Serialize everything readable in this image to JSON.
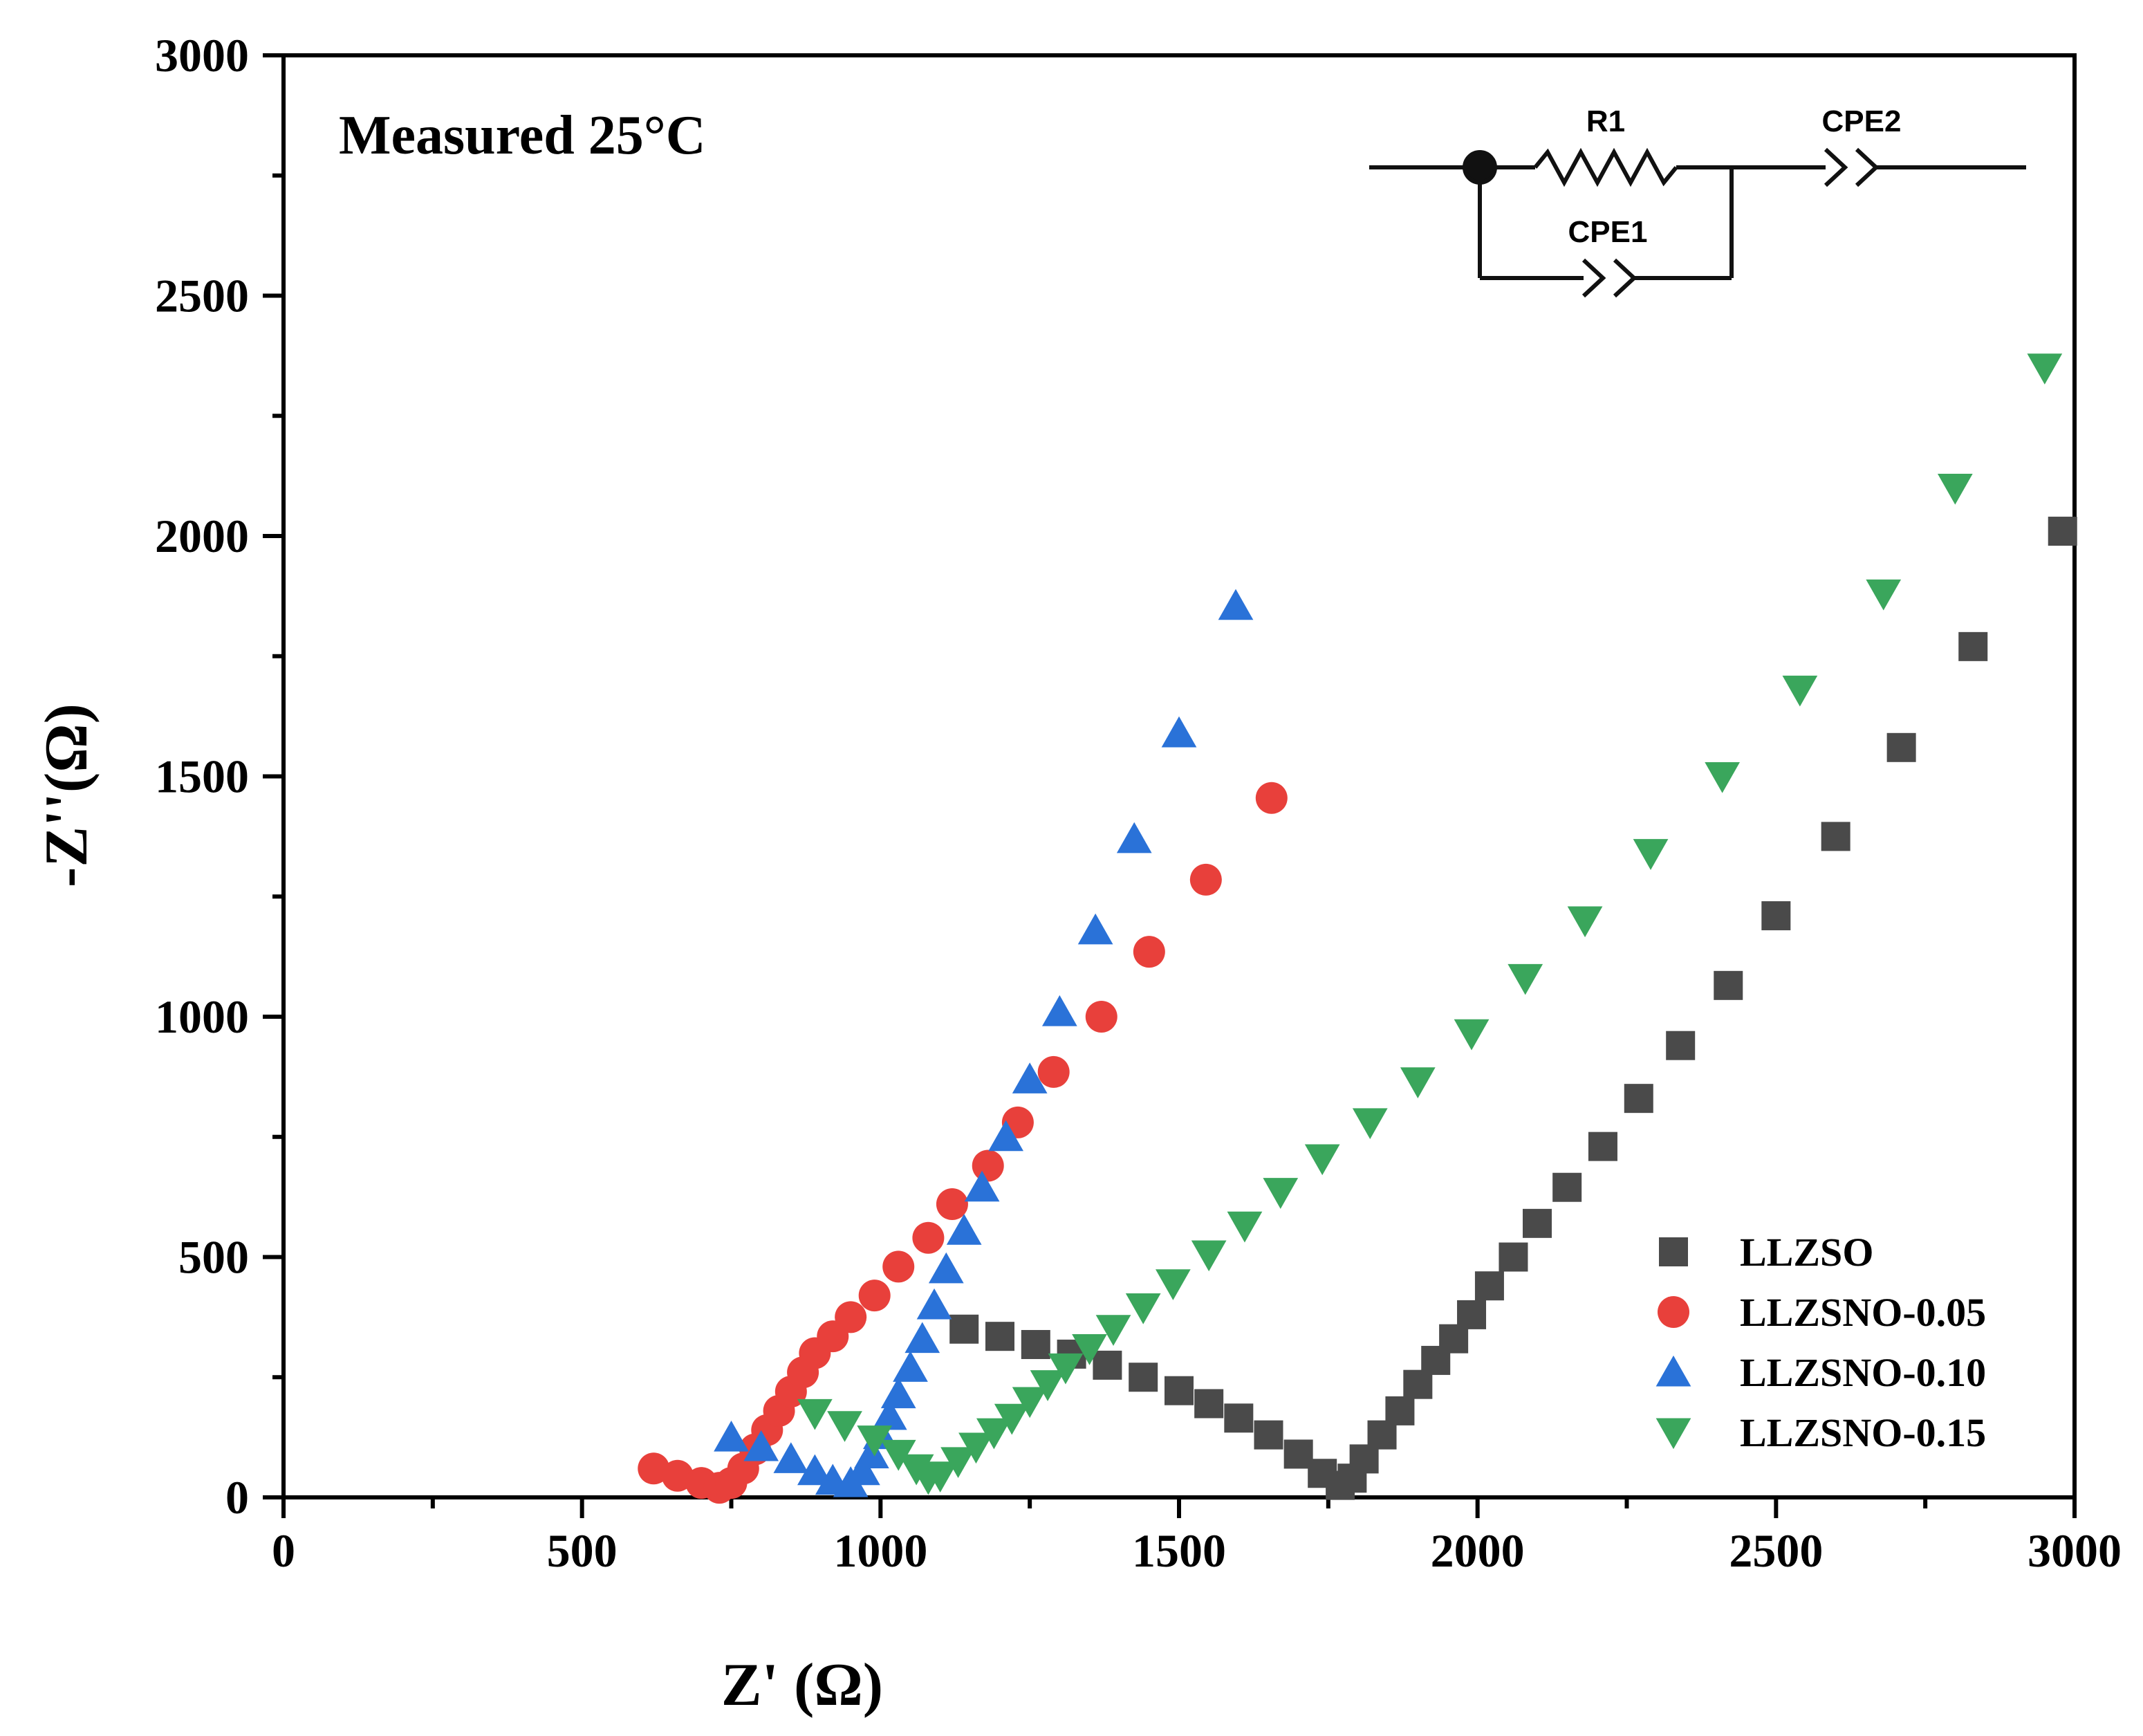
{
  "chart_data": {
    "type": "scatter",
    "xlabel": "Z' (Ω)",
    "ylabel": "-Z''(Ω)",
    "xlim": [
      0,
      3000
    ],
    "ylim": [
      0,
      3000
    ],
    "xticks": [
      "0",
      "500",
      "1000",
      "1500",
      "2000",
      "2500",
      "3000"
    ],
    "yticks": [
      "0",
      "500",
      "1000",
      "1500",
      "2000",
      "2500",
      "3000"
    ],
    "annotation": "Measured 25°C",
    "legend_position": "bottom-right",
    "series": [
      {
        "name": "LLZSO",
        "color": "#4a4a4a",
        "marker": "square",
        "points": [
          [
            1140,
            350
          ],
          [
            1200,
            335
          ],
          [
            1260,
            318
          ],
          [
            1320,
            298
          ],
          [
            1380,
            275
          ],
          [
            1440,
            250
          ],
          [
            1500,
            222
          ],
          [
            1550,
            195
          ],
          [
            1600,
            165
          ],
          [
            1650,
            130
          ],
          [
            1700,
            90
          ],
          [
            1740,
            50
          ],
          [
            1770,
            25
          ],
          [
            1790,
            40
          ],
          [
            1810,
            80
          ],
          [
            1840,
            130
          ],
          [
            1870,
            180
          ],
          [
            1900,
            235
          ],
          [
            1930,
            285
          ],
          [
            1960,
            330
          ],
          [
            1990,
            380
          ],
          [
            2020,
            440
          ],
          [
            2060,
            500
          ],
          [
            2100,
            570
          ],
          [
            2150,
            645
          ],
          [
            2210,
            730
          ],
          [
            2270,
            830
          ],
          [
            2340,
            940
          ],
          [
            2420,
            1065
          ],
          [
            2500,
            1210
          ],
          [
            2600,
            1375
          ],
          [
            2710,
            1560
          ],
          [
            2830,
            1770
          ],
          [
            2980,
            2010
          ]
        ]
      },
      {
        "name": "LLZSNO-0.05",
        "color": "#e8403b",
        "marker": "circle",
        "points": [
          [
            620,
            60
          ],
          [
            660,
            45
          ],
          [
            700,
            30
          ],
          [
            730,
            20
          ],
          [
            750,
            30
          ],
          [
            770,
            60
          ],
          [
            790,
            100
          ],
          [
            810,
            140
          ],
          [
            830,
            180
          ],
          [
            850,
            220
          ],
          [
            870,
            260
          ],
          [
            890,
            300
          ],
          [
            920,
            335
          ],
          [
            950,
            375
          ],
          [
            990,
            420
          ],
          [
            1030,
            480
          ],
          [
            1080,
            540
          ],
          [
            1120,
            610
          ],
          [
            1180,
            690
          ],
          [
            1230,
            780
          ],
          [
            1290,
            885
          ],
          [
            1370,
            1000
          ],
          [
            1450,
            1135
          ],
          [
            1545,
            1285
          ],
          [
            1655,
            1455
          ]
        ]
      },
      {
        "name": "LLZSNO-0.10",
        "color": "#2a72d8",
        "marker": "triangle-up",
        "points": [
          [
            750,
            125
          ],
          [
            800,
            105
          ],
          [
            850,
            80
          ],
          [
            890,
            55
          ],
          [
            920,
            35
          ],
          [
            950,
            30
          ],
          [
            970,
            55
          ],
          [
            985,
            90
          ],
          [
            1000,
            130
          ],
          [
            1015,
            170
          ],
          [
            1030,
            215
          ],
          [
            1050,
            270
          ],
          [
            1070,
            330
          ],
          [
            1090,
            400
          ],
          [
            1110,
            475
          ],
          [
            1140,
            555
          ],
          [
            1170,
            645
          ],
          [
            1210,
            750
          ],
          [
            1250,
            870
          ],
          [
            1300,
            1010
          ],
          [
            1360,
            1180
          ],
          [
            1425,
            1370
          ],
          [
            1500,
            1590
          ],
          [
            1595,
            1855
          ]
        ]
      },
      {
        "name": "LLZSNO-0.15",
        "color": "#3aa65c",
        "marker": "triangle-down",
        "points": [
          [
            890,
            175
          ],
          [
            940,
            150
          ],
          [
            990,
            120
          ],
          [
            1030,
            90
          ],
          [
            1060,
            60
          ],
          [
            1080,
            40
          ],
          [
            1100,
            45
          ],
          [
            1130,
            75
          ],
          [
            1160,
            105
          ],
          [
            1190,
            135
          ],
          [
            1220,
            165
          ],
          [
            1250,
            200
          ],
          [
            1280,
            235
          ],
          [
            1310,
            270
          ],
          [
            1350,
            310
          ],
          [
            1390,
            350
          ],
          [
            1440,
            395
          ],
          [
            1490,
            445
          ],
          [
            1550,
            505
          ],
          [
            1610,
            565
          ],
          [
            1670,
            635
          ],
          [
            1740,
            705
          ],
          [
            1820,
            780
          ],
          [
            1900,
            865
          ],
          [
            1990,
            965
          ],
          [
            2080,
            1080
          ],
          [
            2180,
            1200
          ],
          [
            2290,
            1340
          ],
          [
            2410,
            1500
          ],
          [
            2540,
            1680
          ],
          [
            2680,
            1880
          ],
          [
            2800,
            2100
          ],
          [
            2950,
            2350
          ]
        ]
      }
    ],
    "inset_circuit": {
      "labels": {
        "r1": "R1",
        "cpe1": "CPE1",
        "cpe2": "CPE2"
      }
    }
  }
}
